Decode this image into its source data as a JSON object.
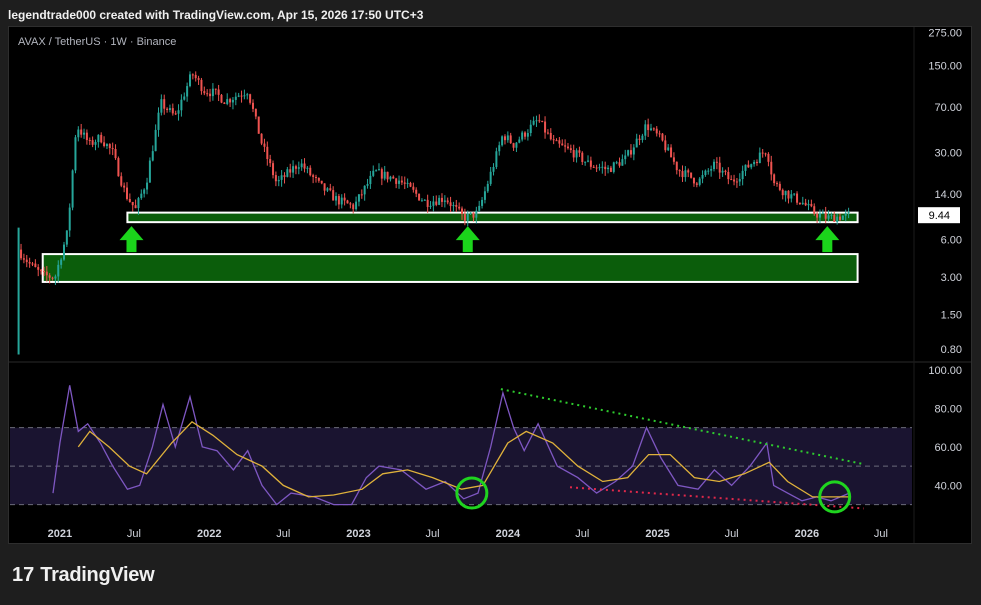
{
  "header": {
    "caption": "legendtrade000 created with TradingView.com, Apr 15, 2026 17:50 UTC+3"
  },
  "footer": {
    "brand": "TradingView",
    "brand_mark": "17"
  },
  "colors": {
    "up": "#26a69a",
    "down": "#ef5350",
    "zone_fill": "#0b5d0b",
    "arrow": "#1bd41b",
    "rsi": "#7e57c2",
    "rsi_ma": "#e0b23b",
    "trend_top": "#2ecc2e",
    "trend_bottom": "#e0284a",
    "circle": "#1fd41f"
  },
  "chart_data": [
    {
      "type": "candlestick",
      "title": "AVAX / TetherUS · 1W · Binance",
      "scale": "log",
      "y_ticks": [
        "275.00",
        "150.00",
        "70.00",
        "30.00",
        "14.00",
        "6.00",
        "3.00",
        "1.50",
        "0.80"
      ],
      "last_price": "9.44",
      "x_ticks": [
        "2021",
        "Jul",
        "2022",
        "Jul",
        "2023",
        "Jul",
        "2024",
        "Jul",
        "2025",
        "Jul",
        "2026",
        "Jul"
      ],
      "x_range": [
        "2020-09-01",
        "2026-09-15"
      ],
      "y_range": [
        0.65,
        300
      ],
      "price_path": [
        [
          "2020-09-21",
          5.0
        ],
        [
          "2020-10-20",
          3.8
        ],
        [
          "2020-11-20",
          3.1
        ],
        [
          "2020-12-20",
          3.0
        ],
        [
          "2021-01-20",
          7.0
        ],
        [
          "2021-02-10",
          50.0
        ],
        [
          "2021-03-15",
          35.0
        ],
        [
          "2021-04-10",
          40.0
        ],
        [
          "2021-05-10",
          30.0
        ],
        [
          "2021-06-10",
          14.0
        ],
        [
          "2021-07-05",
          10.5
        ],
        [
          "2021-08-01",
          18.0
        ],
        [
          "2021-09-05",
          75.0
        ],
        [
          "2021-10-10",
          58.0
        ],
        [
          "2021-11-20",
          130.0
        ],
        [
          "2021-12-20",
          95.0
        ],
        [
          "2022-01-15",
          90.0
        ],
        [
          "2022-02-10",
          78.0
        ],
        [
          "2022-04-05",
          95.0
        ],
        [
          "2022-05-10",
          35.0
        ],
        [
          "2022-06-15",
          17.0
        ],
        [
          "2022-08-10",
          25.0
        ],
        [
          "2022-10-01",
          16.0
        ],
        [
          "2022-11-10",
          12.5
        ],
        [
          "2022-12-20",
          11.0
        ],
        [
          "2023-02-10",
          21.0
        ],
        [
          "2023-04-10",
          18.0
        ],
        [
          "2023-06-15",
          12.0
        ],
        [
          "2023-08-01",
          13.0
        ],
        [
          "2023-09-15",
          9.0
        ],
        [
          "2023-10-20",
          9.8
        ],
        [
          "2023-11-15",
          18.0
        ],
        [
          "2023-12-20",
          42.0
        ],
        [
          "2024-01-15",
          35.0
        ],
        [
          "2024-03-15",
          55.0
        ],
        [
          "2024-04-20",
          36.0
        ],
        [
          "2024-06-10",
          30.0
        ],
        [
          "2024-07-20",
          24.0
        ],
        [
          "2024-09-01",
          22.0
        ],
        [
          "2024-10-15",
          27.0
        ],
        [
          "2024-12-05",
          50.0
        ],
        [
          "2025-01-10",
          38.0
        ],
        [
          "2025-02-20",
          22.0
        ],
        [
          "2025-04-10",
          17.5
        ],
        [
          "2025-05-20",
          24.0
        ],
        [
          "2025-07-01",
          17.5
        ],
        [
          "2025-08-20",
          25.0
        ],
        [
          "2025-09-25",
          32.0
        ],
        [
          "2025-10-12",
          17.0
        ],
        [
          "2025-11-15",
          14.0
        ],
        [
          "2025-12-20",
          12.0
        ],
        [
          "2026-01-20",
          9.8
        ],
        [
          "2026-02-20",
          9.0
        ],
        [
          "2026-03-20",
          9.2
        ],
        [
          "2026-04-15",
          9.44
        ]
      ],
      "support_zones": [
        {
          "from": "2021-06-15",
          "to": "2026-05-05",
          "low": 8.3,
          "high": 9.9
        },
        {
          "from": "2020-11-20",
          "to": "2026-05-05",
          "low": 2.75,
          "high": 4.6
        }
      ],
      "markers": [
        {
          "kind": "up-arrow",
          "date": "2021-06-25"
        },
        {
          "kind": "up-arrow",
          "date": "2023-09-25"
        },
        {
          "kind": "up-arrow",
          "date": "2026-02-20"
        }
      ]
    },
    {
      "type": "line",
      "title": "",
      "y_ticks": [
        "100.00",
        "80.00",
        "60.00",
        "40.00"
      ],
      "y_range": [
        22,
        102
      ],
      "bands": [
        70,
        50,
        30
      ],
      "series": [
        {
          "name": "",
          "points": [
            [
              "2020-12-15",
              36
            ],
            [
              "2021-01-01",
              62
            ],
            [
              "2021-01-25",
              92
            ],
            [
              "2021-02-15",
              68
            ],
            [
              "2021-03-10",
              72
            ],
            [
              "2021-04-10",
              62
            ],
            [
              "2021-05-10",
              50
            ],
            [
              "2021-06-15",
              38
            ],
            [
              "2021-07-15",
              40
            ],
            [
              "2021-08-15",
              60
            ],
            [
              "2021-09-10",
              82
            ],
            [
              "2021-10-10",
              60
            ],
            [
              "2021-11-15",
              86
            ],
            [
              "2021-12-15",
              60
            ],
            [
              "2022-01-20",
              58
            ],
            [
              "2022-03-01",
              48
            ],
            [
              "2022-04-05",
              58
            ],
            [
              "2022-05-10",
              40
            ],
            [
              "2022-06-15",
              30
            ],
            [
              "2022-07-20",
              36
            ],
            [
              "2022-09-15",
              34
            ],
            [
              "2022-11-01",
              30
            ],
            [
              "2022-12-15",
              30
            ],
            [
              "2023-01-20",
              44
            ],
            [
              "2023-02-20",
              50
            ],
            [
              "2023-04-15",
              48
            ],
            [
              "2023-06-15",
              38
            ],
            [
              "2023-08-01",
              42
            ],
            [
              "2023-09-15",
              33
            ],
            [
              "2023-10-20",
              36
            ],
            [
              "2023-11-20",
              60
            ],
            [
              "2023-12-20",
              88
            ],
            [
              "2024-01-15",
              70
            ],
            [
              "2024-02-10",
              58
            ],
            [
              "2024-03-15",
              72
            ],
            [
              "2024-05-01",
              50
            ],
            [
              "2024-06-20",
              44
            ],
            [
              "2024-08-05",
              36
            ],
            [
              "2024-09-20",
              42
            ],
            [
              "2024-11-01",
              50
            ],
            [
              "2024-12-05",
              70
            ],
            [
              "2025-01-10",
              54
            ],
            [
              "2025-02-20",
              40
            ],
            [
              "2025-04-10",
              38
            ],
            [
              "2025-05-20",
              48
            ],
            [
              "2025-07-01",
              40
            ],
            [
              "2025-08-15",
              50
            ],
            [
              "2025-09-25",
              62
            ],
            [
              "2025-10-12",
              40
            ],
            [
              "2025-11-15",
              36
            ],
            [
              "2025-12-20",
              32
            ],
            [
              "2026-01-25",
              34
            ],
            [
              "2026-03-01",
              32
            ],
            [
              "2026-04-15",
              36
            ]
          ]
        },
        {
          "name": "",
          "points": [
            [
              "2021-02-15",
              60
            ],
            [
              "2021-03-15",
              68
            ],
            [
              "2021-05-01",
              60
            ],
            [
              "2021-06-20",
              50
            ],
            [
              "2021-08-01",
              46
            ],
            [
              "2021-10-01",
              62
            ],
            [
              "2021-11-20",
              73
            ],
            [
              "2022-01-10",
              66
            ],
            [
              "2022-03-10",
              56
            ],
            [
              "2022-05-10",
              50
            ],
            [
              "2022-07-01",
              40
            ],
            [
              "2022-09-01",
              34
            ],
            [
              "2022-11-01",
              35
            ],
            [
              "2023-01-10",
              38
            ],
            [
              "2023-03-01",
              46
            ],
            [
              "2023-05-01",
              48
            ],
            [
              "2023-07-01",
              44
            ],
            [
              "2023-09-10",
              38
            ],
            [
              "2023-11-01",
              40
            ],
            [
              "2024-01-01",
              62
            ],
            [
              "2024-02-15",
              68
            ],
            [
              "2024-04-20",
              62
            ],
            [
              "2024-06-20",
              50
            ],
            [
              "2024-08-20",
              42
            ],
            [
              "2024-10-20",
              44
            ],
            [
              "2024-12-10",
              56
            ],
            [
              "2025-02-01",
              56
            ],
            [
              "2025-04-01",
              44
            ],
            [
              "2025-06-01",
              42
            ],
            [
              "2025-08-01",
              46
            ],
            [
              "2025-10-01",
              52
            ],
            [
              "2025-11-15",
              42
            ],
            [
              "2026-01-15",
              34
            ],
            [
              "2026-04-15",
              34
            ]
          ]
        }
      ],
      "trendlines": [
        {
          "color_key": "trend_top",
          "from": [
            "2023-12-15",
            90
          ],
          "to": [
            "2026-05-20",
            51
          ]
        },
        {
          "color_key": "trend_bottom",
          "from": [
            "2024-06-01",
            39
          ],
          "to": [
            "2026-05-20",
            28
          ]
        }
      ],
      "highlights": [
        {
          "date": "2023-10-05",
          "value": 36
        },
        {
          "date": "2026-03-10",
          "value": 34
        }
      ]
    }
  ]
}
